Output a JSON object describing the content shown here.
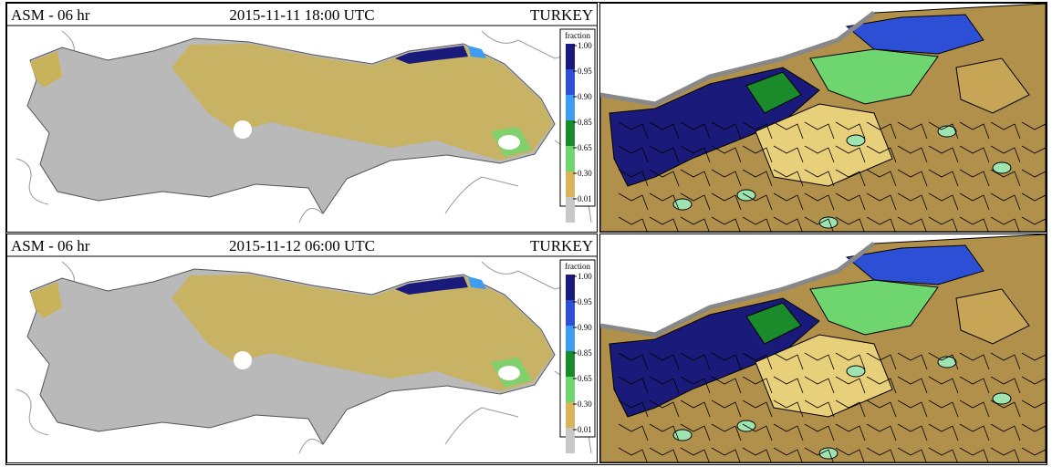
{
  "panels": [
    {
      "model": "ASM - 06 hr",
      "time": "2015-11-11 18:00 UTC",
      "region": "TURKEY",
      "legend": {
        "title": "fraction",
        "ticks": [
          "1.00",
          "0.95",
          "0.90",
          "0.85",
          "0.65",
          "0.30",
          "0.01"
        ]
      }
    },
    {
      "model": "ASM - 06 hr",
      "time": "2015-11-12 06:00 UTC",
      "region": "TURKEY",
      "legend": {
        "title": "fraction",
        "ticks": [
          "1.00",
          "0.95",
          "0.90",
          "0.85",
          "0.65",
          "0.30",
          "0.01"
        ]
      }
    }
  ]
}
